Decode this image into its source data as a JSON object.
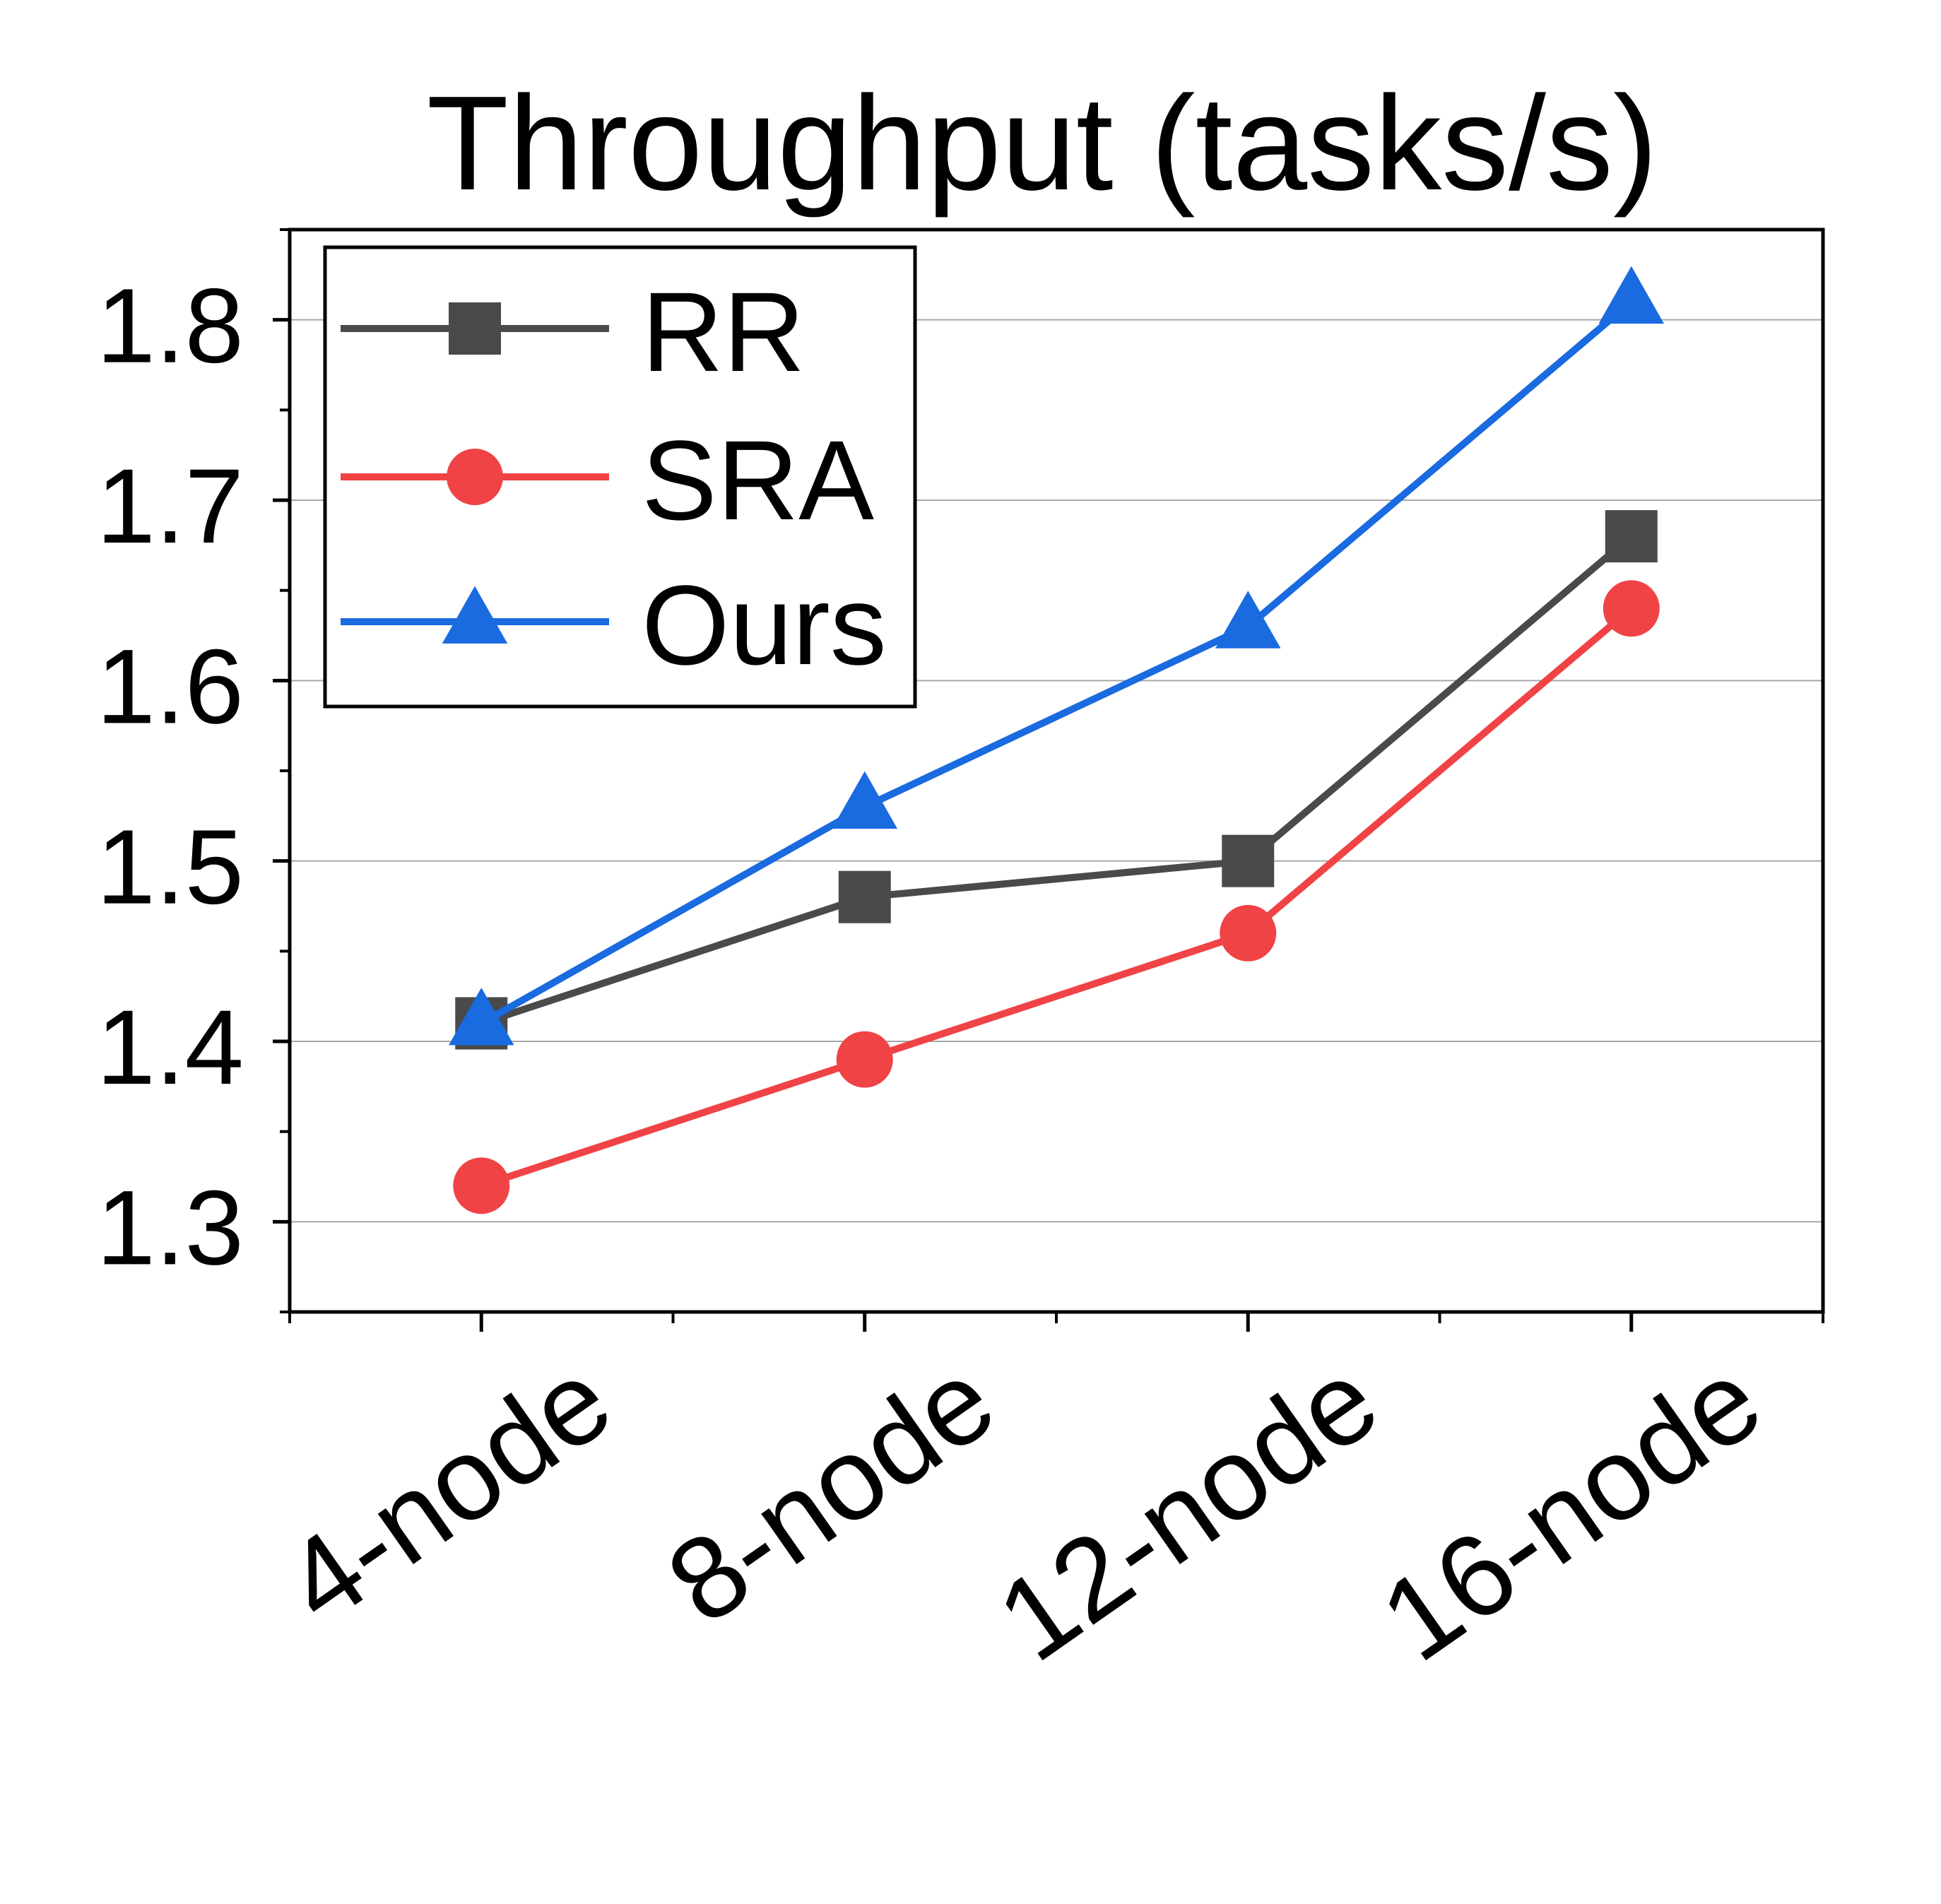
{
  "chart_data": {
    "type": "line",
    "title": "Throughput (tasks/s)",
    "xlabel": "",
    "ylabel": "",
    "categories": [
      "4-node",
      "8-node",
      "12-node",
      "16-node"
    ],
    "ylim": [
      1.25,
      1.85
    ],
    "yticks": [
      "1.3",
      "1.4",
      "1.5",
      "1.6",
      "1.7",
      "1.8"
    ],
    "grid": true,
    "legend_position": "top-left",
    "series": [
      {
        "name": "RR",
        "values": [
          1.41,
          1.48,
          1.5,
          1.68
        ],
        "color": "#4a4a4a",
        "marker": "square"
      },
      {
        "name": "SRA",
        "values": [
          1.32,
          1.39,
          1.46,
          1.64
        ],
        "color": "#f04346",
        "marker": "circle"
      },
      {
        "name": "Ours",
        "values": [
          1.41,
          1.53,
          1.63,
          1.81
        ],
        "color": "#1a6ae0",
        "marker": "triangle"
      }
    ]
  }
}
